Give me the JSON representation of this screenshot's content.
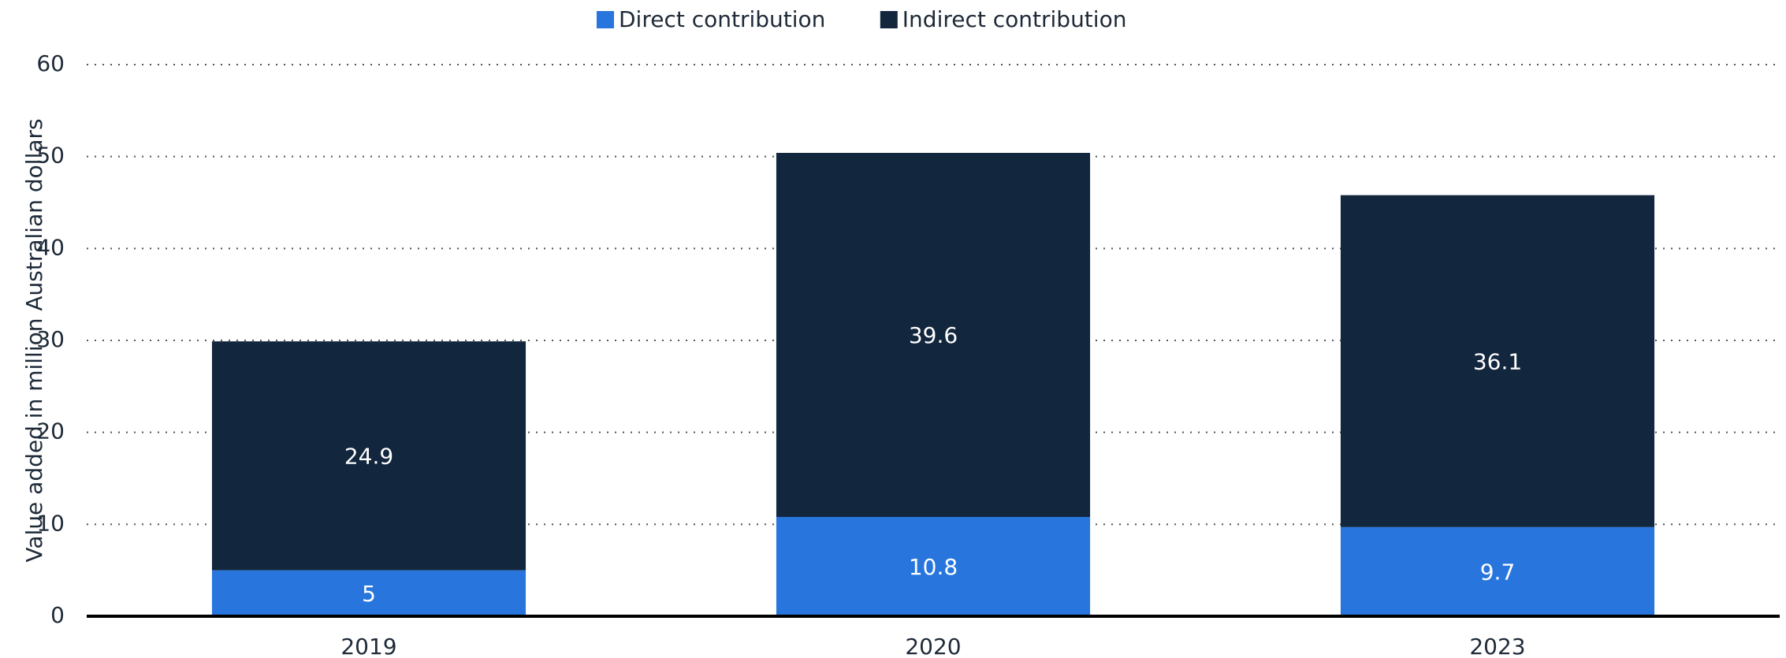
{
  "chart_data": {
    "type": "bar",
    "stacked": true,
    "y_label": "Value added in million Australian dollars",
    "categories": [
      "2019",
      "2020",
      "2023"
    ],
    "series": [
      {
        "name": "Direct contribution",
        "color": "#2876dd",
        "values": [
          5,
          10.8,
          9.7
        ]
      },
      {
        "name": "Indirect contribution",
        "color": "#12263d",
        "values": [
          24.9,
          39.6,
          36.1
        ]
      }
    ],
    "ylim": [
      0,
      60
    ],
    "yticks": [
      0,
      10,
      20,
      30,
      40,
      50,
      60
    ],
    "grid": true,
    "legend": "top"
  }
}
